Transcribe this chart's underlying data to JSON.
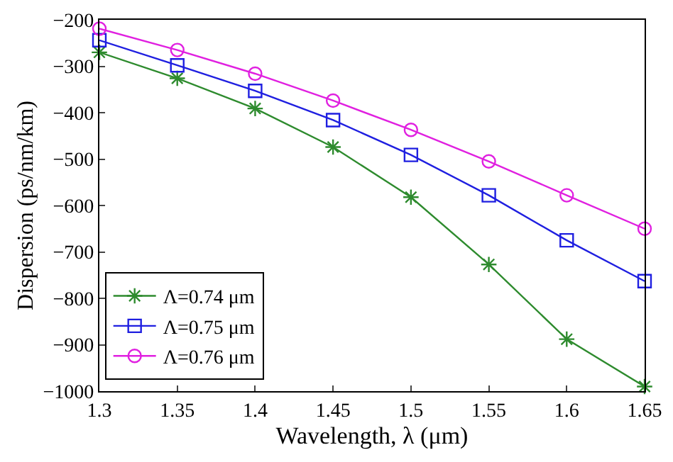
{
  "chart_data": {
    "type": "line",
    "xlabel": "Wavelength, λ (μm)",
    "ylabel": "Dispersion (ps/nm/km)",
    "x": [
      1.3,
      1.35,
      1.4,
      1.45,
      1.5,
      1.55,
      1.6,
      1.65
    ],
    "series": [
      {
        "name": "Λ=0.74 μm",
        "color": "#2e8b2e",
        "marker": "cross",
        "values": [
          -270,
          -326,
          -391,
          -474,
          -582,
          -727,
          -888,
          -990
        ]
      },
      {
        "name": "Λ=0.75 μm",
        "color": "#1f1fe0",
        "marker": "square",
        "values": [
          -244,
          -298,
          -353,
          -416,
          -491,
          -578,
          -675,
          -763
        ]
      },
      {
        "name": "Λ=0.76 μm",
        "color": "#e020e0",
        "marker": "circle",
        "values": [
          -219,
          -265,
          -316,
          -374,
          -437,
          -505,
          -578,
          -650
        ]
      }
    ],
    "xlim": [
      1.3,
      1.65
    ],
    "xticks": [
      1.3,
      1.35,
      1.4,
      1.45,
      1.5,
      1.55,
      1.6,
      1.65
    ],
    "ylim": [
      -1000,
      -200
    ],
    "yticks": [
      -1000,
      -900,
      -800,
      -700,
      -600,
      -500,
      -400,
      -300,
      -200
    ],
    "legend": "bottom left",
    "line_style": "solid"
  }
}
